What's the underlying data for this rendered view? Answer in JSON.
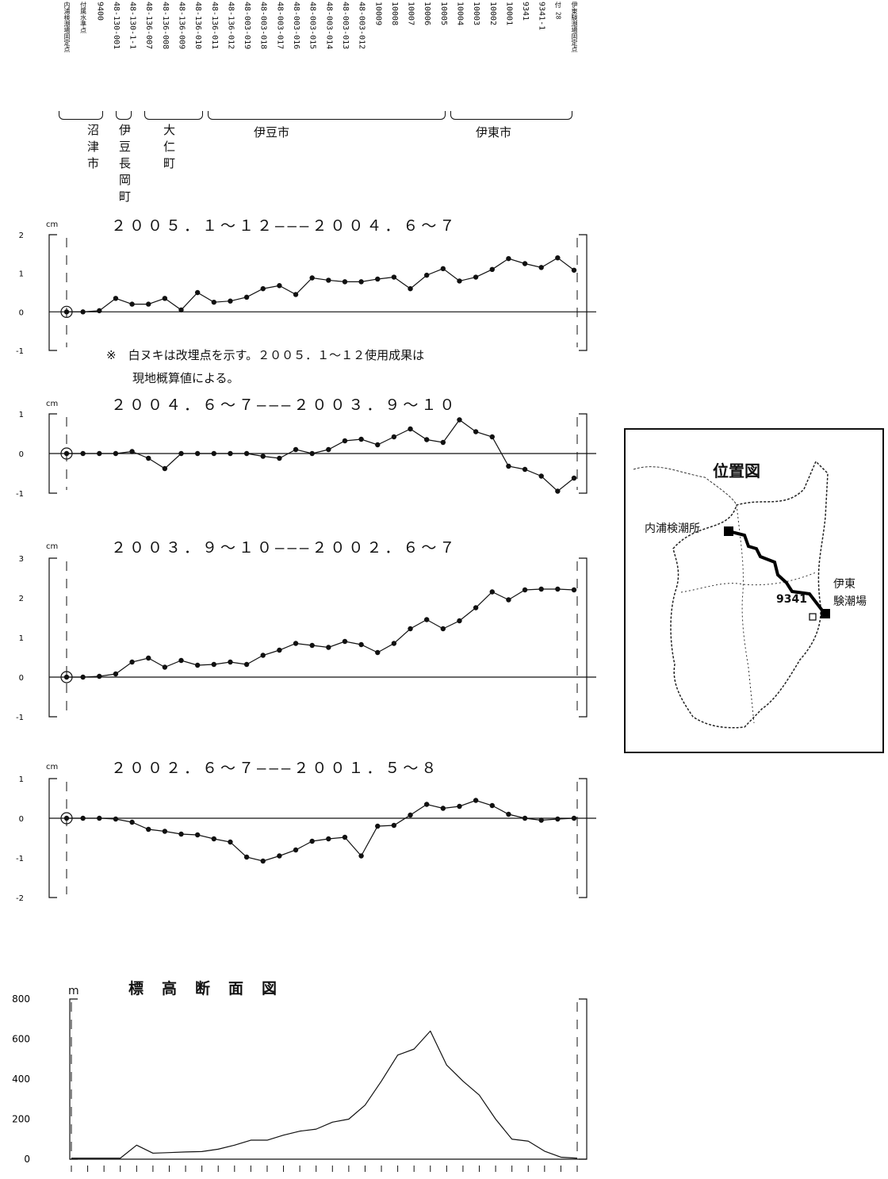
{
  "benchmarks": [
    "内浦検潮場固定点",
    "付属水準点",
    "9400",
    "48-130-001",
    "48-130-1-1",
    "48-136-007",
    "48-136-008",
    "48-136-009",
    "48-136-010",
    "48-136-011",
    "48-136-012",
    "48-003-019",
    "48-003-018",
    "48-003-017",
    "48-003-016",
    "48-003-015",
    "48-003-014",
    "48-003-013",
    "48-003-012",
    "10009",
    "10008",
    "10007",
    "10006",
    "10005",
    "10004",
    "10003",
    "10002",
    "10001",
    "9341",
    "9341-1",
    "付 28",
    "伊東験潮場固定点"
  ],
  "regions": [
    "沼津市",
    "伊豆長岡町",
    "大仁町",
    "伊豆市",
    "伊東市"
  ],
  "note": {
    "line1": "※　白ヌキは改埋点を示す。２００５．１～１２使用成果は",
    "line2": "現地概算値による。"
  },
  "map": {
    "title": "位置図",
    "label_uchiura": "内浦検潮所",
    "label_ito_1": "伊東",
    "label_ito_2": "験潮場",
    "label_bm": "9341"
  },
  "colors": {
    "ink": "#111111",
    "background": "#ffffff"
  },
  "chart_data": [
    {
      "type": "line",
      "title": "２００５．１～１２―――２００４．６～７",
      "ylabel": "cm",
      "ylim": [
        -1,
        2
      ],
      "yticks": [
        "2",
        "1",
        "0",
        "-1"
      ],
      "y": [
        0,
        0,
        0.03,
        0.35,
        0.2,
        0.2,
        0.35,
        0.05,
        0.5,
        0.25,
        0.28,
        0.38,
        0.6,
        0.68,
        0.45,
        0.88,
        0.82,
        0.78,
        0.78,
        0.85,
        0.9,
        0.6,
        0.95,
        1.12,
        0.8,
        0.9,
        1.1,
        1.38,
        1.25,
        1.15,
        1.4,
        1.08
      ]
    },
    {
      "type": "line",
      "title": "２００４．６～７―――２００３．９～１０",
      "ylabel": "cm",
      "ylim": [
        -1,
        1
      ],
      "yticks": [
        "1",
        "0",
        "-1"
      ],
      "y": [
        0,
        0,
        0,
        0,
        0.05,
        -0.12,
        -0.38,
        0,
        0,
        0,
        0,
        0,
        -0.07,
        -0.12,
        0.1,
        0,
        0.1,
        0.32,
        0.36,
        0.22,
        0.42,
        0.62,
        0.35,
        0.28,
        0.85,
        0.55,
        0.42,
        -0.32,
        -0.4,
        -0.57,
        -0.95,
        -0.62
      ]
    },
    {
      "type": "line",
      "title": "２００３．９～１０―――２００２．６～７",
      "ylabel": "cm",
      "ylim": [
        -1,
        3
      ],
      "yticks": [
        "3",
        "2",
        "1",
        "0",
        "-1"
      ],
      "y": [
        0,
        0,
        0.02,
        0.08,
        0.38,
        0.48,
        0.25,
        0.42,
        0.3,
        0.32,
        0.38,
        0.32,
        0.55,
        0.68,
        0.85,
        0.8,
        0.75,
        0.9,
        0.82,
        0.62,
        0.85,
        1.22,
        1.45,
        1.22,
        1.42,
        1.75,
        2.15,
        1.95,
        2.2,
        2.22,
        2.22,
        2.2
      ]
    },
    {
      "type": "line",
      "title": "２００２．６～７―――２００１．５～８",
      "ylabel": "cm",
      "ylim": [
        -2,
        1
      ],
      "yticks": [
        "1",
        "0",
        "-1",
        "-2"
      ],
      "y": [
        0,
        0,
        0,
        -0.02,
        -0.1,
        -0.28,
        -0.33,
        -0.4,
        -0.42,
        -0.52,
        -0.6,
        -0.98,
        -1.08,
        -0.95,
        -0.8,
        -0.58,
        -0.52,
        -0.48,
        -0.95,
        -0.2,
        -0.18,
        0.08,
        0.35,
        0.25,
        0.3,
        0.45,
        0.32,
        0.1,
        0,
        -0.05,
        -0.02,
        0
      ]
    },
    {
      "type": "area",
      "title": "標　高　断　面　図",
      "ylabel": "m",
      "ylim": [
        0,
        800
      ],
      "yticks": [
        "800",
        "600",
        "400",
        "200",
        "0"
      ],
      "y": [
        5,
        5,
        5,
        5,
        70,
        30,
        33,
        36,
        38,
        50,
        70,
        95,
        95,
        120,
        140,
        150,
        185,
        200,
        270,
        390,
        520,
        550,
        640,
        470,
        390,
        320,
        200,
        100,
        90,
        40,
        10,
        5
      ]
    }
  ]
}
